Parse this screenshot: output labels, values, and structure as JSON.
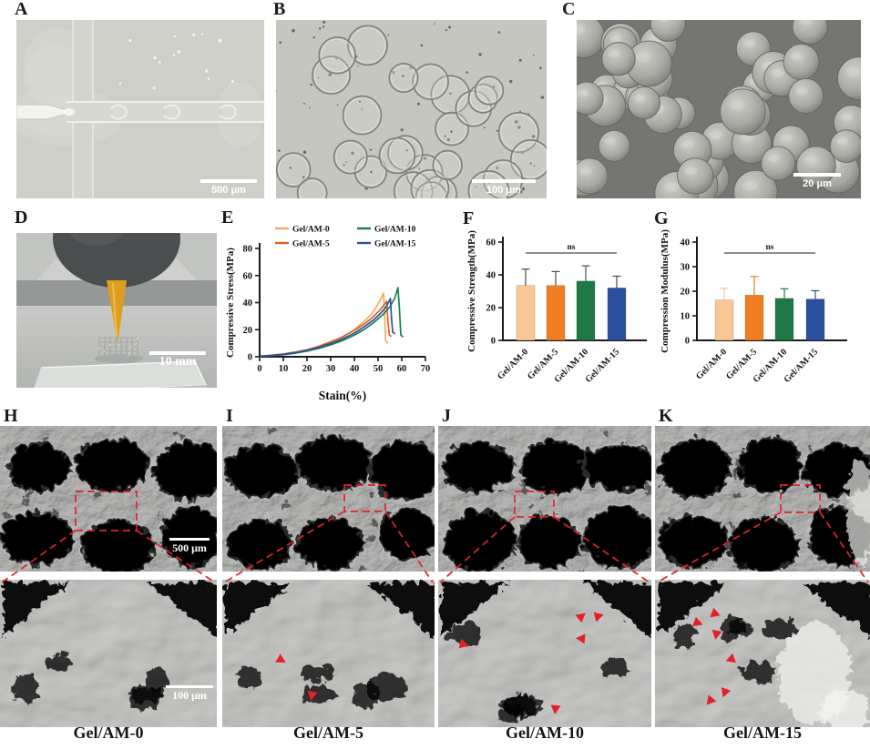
{
  "colors": {
    "annotation_red": "#E42127",
    "axis_black": "#1a1a1a",
    "series": {
      "gel_am_0": "#F5AA63",
      "gel_am_5": "#E4601D",
      "gel_am_10": "#17804E",
      "gel_am_15": "#2A519F"
    },
    "bar_fill": [
      "#F7C795",
      "#EF7D22",
      "#1E7A45",
      "#2A4F9D"
    ]
  },
  "panels": {
    "A": {
      "label": "A",
      "scale_bar": "500 μm",
      "alt": "bright-field micrograph of droplet generation at flow-focusing microfluidic junction"
    },
    "B": {
      "label": "B",
      "scale_bar": "100 μm",
      "alt": "bright-field micrograph of transparent hydrogel microspheres"
    },
    "C": {
      "label": "C",
      "scale_bar": "20 μm",
      "alt": "SEM image of dried microspheres"
    },
    "D": {
      "label": "D",
      "scale_bar": "10 mm",
      "alt": "photograph of extrusion printing nozzle over glass slide with lattice scaffold"
    },
    "E": {
      "label": "E"
    },
    "F": {
      "label": "F"
    },
    "G": {
      "label": "G"
    },
    "H": {
      "label": "H",
      "scale_bar_top": "500 μm",
      "scale_bar_bottom": "100 μm",
      "caption": "Gel/AM-0",
      "alt": "SEM of scaffold macropores with magnified strut region"
    },
    "I": {
      "label": "I",
      "caption": "Gel/AM-5",
      "alt": "SEM of scaffold macropores with magnified strut region, arrows mark microsphere pores"
    },
    "J": {
      "label": "J",
      "caption": "Gel/AM-10",
      "alt": "SEM of scaffold macropores with magnified strut region, arrows mark microsphere pores"
    },
    "K": {
      "label": "K",
      "caption": "Gel/AM-15",
      "alt": "SEM of scaffold macropores with magnified strut region, arrows mark microsphere pores"
    }
  },
  "chart_data": [
    {
      "id": "E",
      "type": "line",
      "title": "",
      "xlabel": "Stain(%)",
      "ylabel": "Compressive Stress(MPa)",
      "xlim": [
        0,
        70
      ],
      "ylim": [
        0,
        80
      ],
      "xticks": [
        0,
        10,
        20,
        30,
        40,
        50,
        60,
        70
      ],
      "yticks": [
        0,
        20,
        40,
        60,
        80
      ],
      "grid": false,
      "legend_position": "top-inside-two-columns",
      "series": [
        {
          "name": "Gel/AM-0",
          "color": "#F5AA63",
          "points": [
            [
              0,
              0.5
            ],
            [
              5,
              1
            ],
            [
              10,
              2
            ],
            [
              15,
              3.2
            ],
            [
              20,
              5
            ],
            [
              25,
              7.5
            ],
            [
              30,
              10.5
            ],
            [
              35,
              14.5
            ],
            [
              40,
              20
            ],
            [
              44,
              26
            ],
            [
              47,
              31
            ],
            [
              49,
              36
            ],
            [
              51,
              42
            ],
            [
              52.3,
              47
            ],
            [
              52.8,
              30
            ],
            [
              53.2,
              12
            ],
            [
              54.2,
              10
            ]
          ]
        },
        {
          "name": "Gel/AM-5",
          "color": "#E4601D",
          "points": [
            [
              0,
              0.5
            ],
            [
              5,
              1
            ],
            [
              10,
              2
            ],
            [
              15,
              3.4
            ],
            [
              20,
              5.2
            ],
            [
              25,
              7.8
            ],
            [
              30,
              11
            ],
            [
              35,
              14.8
            ],
            [
              40,
              19.5
            ],
            [
              44,
              24
            ],
            [
              47,
              28
            ],
            [
              50,
              33
            ],
            [
              52,
              37
            ],
            [
              53.6,
              41
            ],
            [
              54.2,
              25
            ],
            [
              54.8,
              16
            ],
            [
              55.6,
              15
            ]
          ]
        },
        {
          "name": "Gel/AM-10",
          "color": "#17804E",
          "points": [
            [
              0,
              0.3
            ],
            [
              5,
              0.8
            ],
            [
              10,
              1.5
            ],
            [
              15,
              2.6
            ],
            [
              20,
              4.2
            ],
            [
              25,
              6.2
            ],
            [
              30,
              8.8
            ],
            [
              35,
              12
            ],
            [
              40,
              16
            ],
            [
              44,
              20
            ],
            [
              48,
              25
            ],
            [
              52,
              31
            ],
            [
              55,
              37
            ],
            [
              57,
              43
            ],
            [
              58.4,
              51
            ],
            [
              59,
              36
            ],
            [
              59.6,
              16
            ],
            [
              60.6,
              14.5
            ]
          ]
        },
        {
          "name": "Gel/AM-15",
          "color": "#2A519F",
          "points": [
            [
              0,
              0.4
            ],
            [
              5,
              1
            ],
            [
              10,
              1.8
            ],
            [
              15,
              3
            ],
            [
              20,
              4.8
            ],
            [
              25,
              7
            ],
            [
              30,
              9.8
            ],
            [
              35,
              13.2
            ],
            [
              40,
              17.5
            ],
            [
              44,
              22
            ],
            [
              48,
              27
            ],
            [
              51,
              32
            ],
            [
              53.5,
              37
            ],
            [
              55.2,
              43
            ],
            [
              55.7,
              28
            ],
            [
              56.2,
              18
            ],
            [
              57.2,
              17
            ]
          ]
        }
      ]
    },
    {
      "id": "F",
      "type": "bar",
      "title": "",
      "ylabel": "Compressive Strength(MPa)",
      "ylim": [
        0,
        60
      ],
      "yticks": [
        0,
        20,
        40,
        60
      ],
      "categories": [
        "Gel/AM-0",
        "Gel/AM-5",
        "Gel/AM-10",
        "Gel/AM-15"
      ],
      "values": [
        33.5,
        33.5,
        36.2,
        32
      ],
      "errors": [
        10,
        8.5,
        9.3,
        7.2
      ],
      "bar_colors": [
        "#F7C795",
        "#EF7D22",
        "#1E7A45",
        "#2A4F9D"
      ],
      "error_color": "#4a4a4a",
      "annotation": "ns"
    },
    {
      "id": "G",
      "type": "bar",
      "title": "",
      "ylabel": "Compression Modulus(MPa)",
      "ylim": [
        0,
        40
      ],
      "yticks": [
        0,
        10,
        20,
        30,
        40
      ],
      "categories": [
        "Gel/AM-0",
        "Gel/AM-5",
        "Gel/AM-10",
        "Gel/AM-15"
      ],
      "values": [
        16.4,
        18.4,
        17.1,
        16.8
      ],
      "errors": [
        4.8,
        7.6,
        3.9,
        3.4
      ],
      "bar_colors": [
        "#F7C795",
        "#EF7D22",
        "#1E7A45",
        "#2A4F9D"
      ],
      "error_color": "match",
      "annotation": "ns"
    }
  ]
}
